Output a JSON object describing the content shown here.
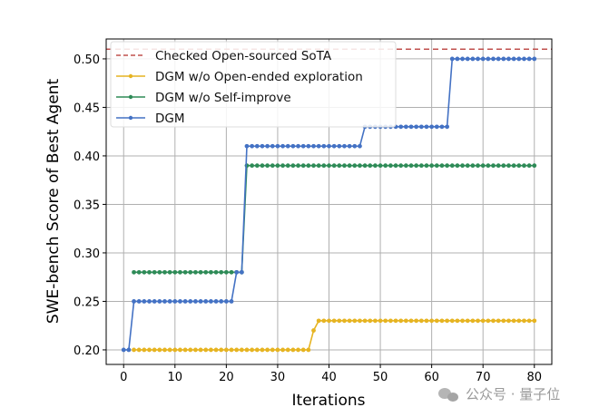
{
  "chart_data": {
    "type": "line",
    "title": "",
    "xlabel": "Iterations",
    "ylabel": "SWE-bench Score of Best Agent",
    "xlim": [
      -3.4,
      83.4
    ],
    "ylim": [
      0.185,
      0.5205
    ],
    "grid": true,
    "legend_position": "top-left",
    "xticks": [
      0,
      10,
      20,
      30,
      40,
      50,
      60,
      70,
      80
    ],
    "yticks": [
      "0.20",
      "0.25",
      "0.30",
      "0.35",
      "0.40",
      "0.45",
      "0.50"
    ],
    "reference_line": {
      "name": "Checked Open-sourced SoTA",
      "value": 0.51,
      "color": "#c0504d",
      "style": "dashed"
    },
    "series": [
      {
        "name": "DGM w/o Open-ended exploration",
        "color": "#e6b422",
        "steps": [
          [
            2,
            0.2
          ],
          [
            37,
            0.22
          ],
          [
            38,
            0.23
          ]
        ],
        "x_end": 80
      },
      {
        "name": "DGM w/o Self-improve",
        "color": "#2e8b57",
        "steps": [
          [
            2,
            0.28
          ],
          [
            24,
            0.39
          ]
        ],
        "x_end": 80
      },
      {
        "name": "DGM",
        "color": "#4472c4",
        "steps": [
          [
            0,
            0.2
          ],
          [
            2,
            0.25
          ],
          [
            22,
            0.28
          ],
          [
            24,
            0.41
          ],
          [
            47,
            0.43
          ],
          [
            64,
            0.5
          ]
        ],
        "x_end": 80
      }
    ]
  },
  "watermark": {
    "text": "公众号 · 量子位",
    "icon": "wechat-icon"
  }
}
